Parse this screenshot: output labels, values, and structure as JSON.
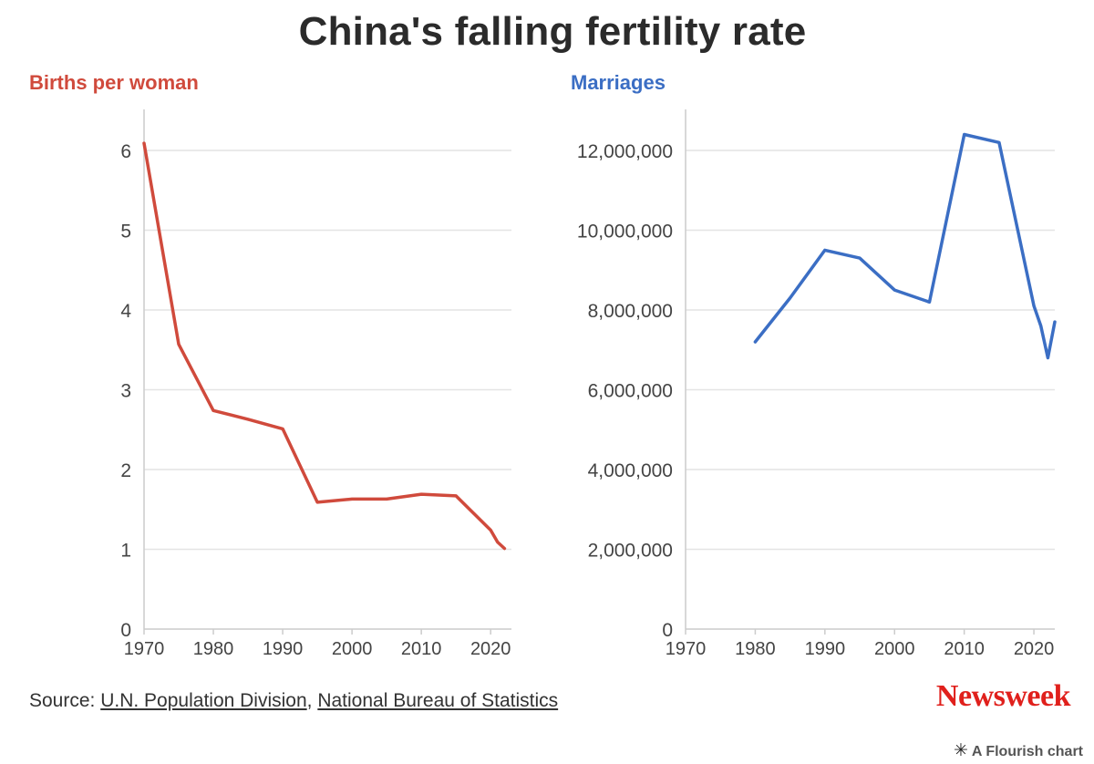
{
  "title": "China's falling fertility rate",
  "colors": {
    "births": "#d04a3c",
    "marriages": "#3b6ec4",
    "grid": "#e4e4e4",
    "axis": "#cccccc",
    "brand": "#e0201c"
  },
  "chart_data": [
    {
      "type": "line",
      "subtitle": "Births per woman",
      "series": [
        {
          "x": [
            1970,
            1975,
            1980,
            1985,
            1990,
            1995,
            2000,
            2005,
            2010,
            2015,
            2020,
            2021,
            2022
          ],
          "y": [
            6.09,
            3.57,
            2.74,
            2.63,
            2.51,
            1.59,
            1.63,
            1.63,
            1.69,
            1.67,
            1.24,
            1.09,
            1.01
          ]
        }
      ],
      "xlim": [
        1970,
        2023
      ],
      "ylim": [
        0,
        6
      ],
      "xticks": [
        1970,
        1980,
        1990,
        2000,
        2010,
        2020
      ],
      "yticks": [
        0,
        1,
        2,
        3,
        4,
        5,
        6
      ],
      "ytick_labels": [
        "0",
        "1",
        "2",
        "3",
        "4",
        "5",
        "6"
      ],
      "xtick_labels": [
        "1970",
        "1980",
        "1990",
        "2000",
        "2010",
        "2020"
      ],
      "grid": true
    },
    {
      "type": "line",
      "subtitle": "Marriages",
      "series": [
        {
          "x": [
            1980,
            1985,
            1990,
            1995,
            2000,
            2005,
            2010,
            2015,
            2020,
            2021,
            2022,
            2023
          ],
          "y": [
            7200000,
            8300000,
            9500000,
            9300000,
            8500000,
            8200000,
            12400000,
            12200000,
            8100000,
            7600000,
            6800000,
            7700000
          ]
        }
      ],
      "xlim": [
        1970,
        2023
      ],
      "ylim": [
        0,
        12000000
      ],
      "xticks": [
        1970,
        1980,
        1990,
        2000,
        2010,
        2020
      ],
      "yticks": [
        0,
        2000000,
        4000000,
        6000000,
        8000000,
        10000000,
        12000000
      ],
      "ytick_labels": [
        "0",
        "2,000,000",
        "4,000,000",
        "6,000,000",
        "8,000,000",
        "10,000,000",
        "12,000,000"
      ],
      "xtick_labels": [
        "1970",
        "1980",
        "1990",
        "2000",
        "2010",
        "2020"
      ],
      "grid": true
    }
  ],
  "source": {
    "prefix": "Source: ",
    "link1": "U.N. Population Division",
    "separator": ", ",
    "link2": "National Bureau of Statistics"
  },
  "brand": "Newsweek",
  "credit": "A Flourish chart"
}
